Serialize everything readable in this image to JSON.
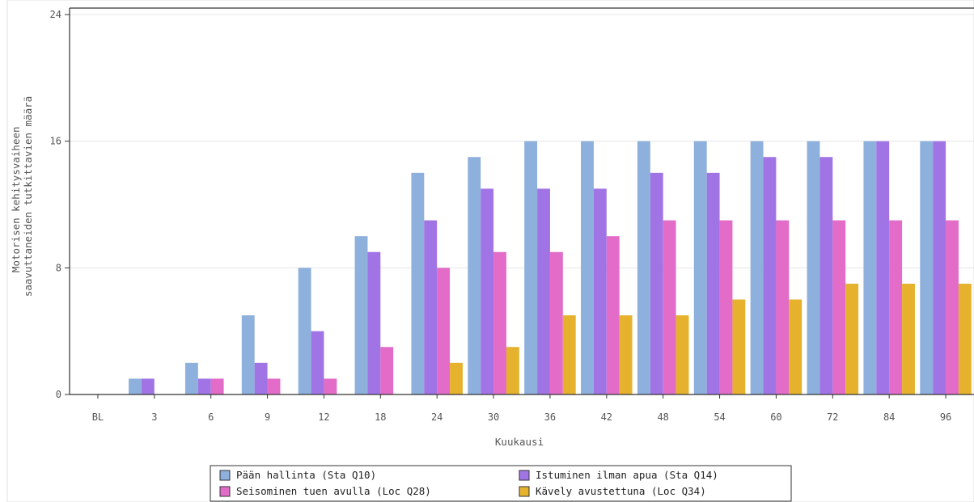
{
  "chart_data": {
    "type": "bar",
    "categories": [
      "BL",
      "3",
      "6",
      "9",
      "12",
      "18",
      "24",
      "30",
      "36",
      "42",
      "48",
      "54",
      "60",
      "72",
      "84",
      "96"
    ],
    "series": [
      {
        "name": "Pään hallinta (Sta Q10)",
        "color": "#8eb0dc",
        "values": [
          0,
          1,
          2,
          5,
          8,
          10,
          14,
          15,
          16,
          16,
          16,
          16,
          16,
          16,
          16,
          16
        ]
      },
      {
        "name": "Istuminen ilman apua (Sta Q14)",
        "color": "#a174e6",
        "values": [
          0,
          1,
          1,
          2,
          4,
          9,
          11,
          13,
          13,
          13,
          14,
          14,
          15,
          15,
          16,
          16
        ]
      },
      {
        "name": "Seisominen tuen avulla (Loc Q28)",
        "color": "#e26cc8",
        "values": [
          0,
          0,
          1,
          1,
          1,
          3,
          8,
          9,
          9,
          10,
          11,
          11,
          11,
          11,
          11,
          11
        ]
      },
      {
        "name": "Kävely avustettuna (Loc Q34)",
        "color": "#e6b22e",
        "values": [
          0,
          0,
          0,
          0,
          0,
          0,
          2,
          3,
          5,
          5,
          5,
          6,
          6,
          7,
          7,
          7
        ]
      }
    ],
    "title": "",
    "xlabel": "Kuukausi",
    "ylabel": [
      "Motorisen kehitysvaiheen",
      "saavuttaneiden tutkittavien määrä"
    ],
    "ylim": [
      0,
      24
    ],
    "yticks": [
      "0",
      "8",
      "16",
      "24"
    ],
    "grid": true,
    "legend_position": "bottom"
  }
}
